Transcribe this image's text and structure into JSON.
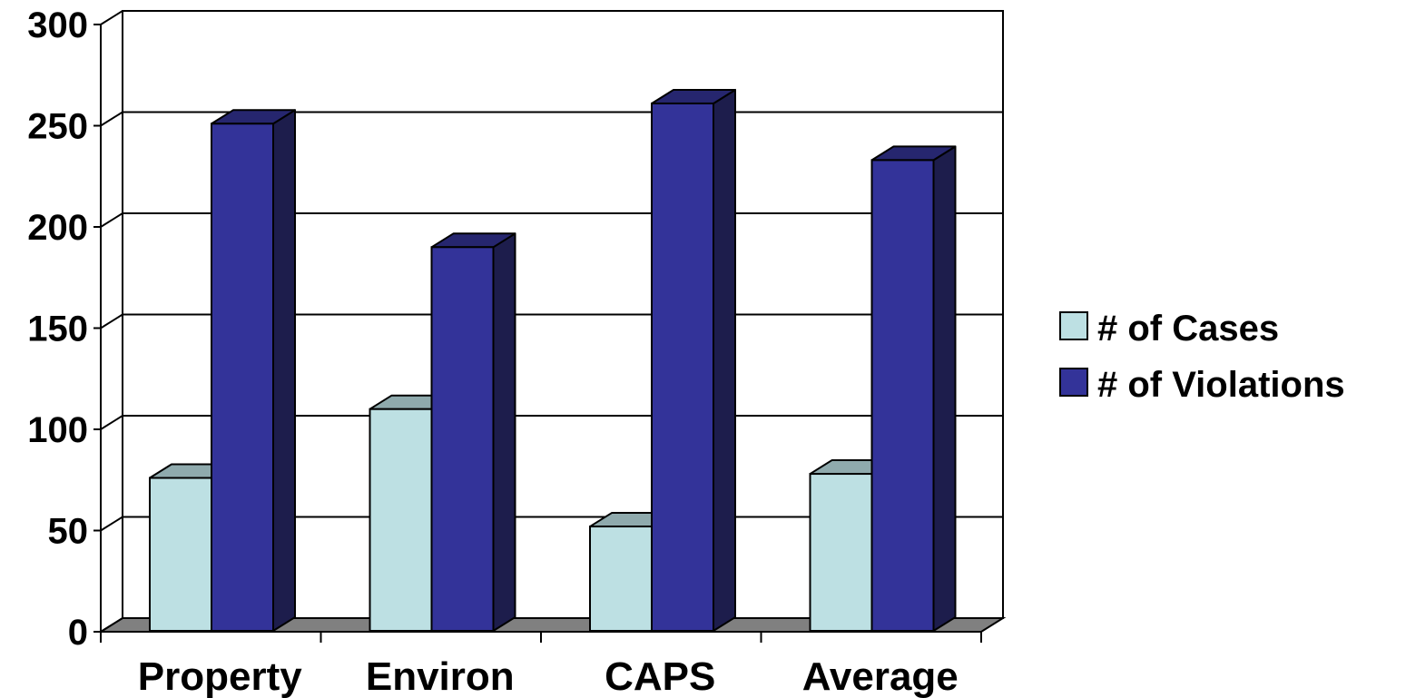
{
  "chart_data": {
    "type": "bar",
    "title": "",
    "xlabel": "",
    "ylabel": "",
    "categories": [
      "Property",
      "Environ",
      "CAPS",
      "Average"
    ],
    "series": [
      {
        "name": "# of Cases",
        "values": [
          76,
          110,
          52,
          78
        ]
      },
      {
        "name": "# of Violations",
        "values": [
          251,
          190,
          261,
          233
        ]
      }
    ],
    "ylim": [
      0,
      300
    ],
    "yticks": [
      "0",
      "50",
      "100",
      "150",
      "200",
      "250",
      "300"
    ],
    "grid": true,
    "legend_position": "right",
    "style": "3d"
  },
  "colors": {
    "cases_front": "#bde0e3",
    "cases_top": "#8faaad",
    "cases_side": "#7f9a9c",
    "violations_front": "#333399",
    "violations_top": "#26266f",
    "violations_side": "#1d1d4c",
    "floor": "#808080",
    "grid": "#000000"
  }
}
